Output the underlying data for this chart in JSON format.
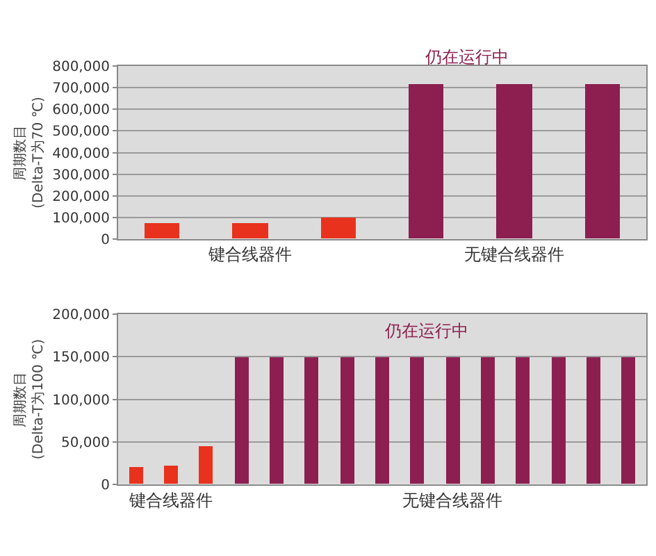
{
  "chart_data": [
    {
      "type": "bar",
      "ylabel": "周期数目\n(Delta-T为70 ℃)",
      "categories": [
        null,
        "键合线器件",
        null,
        null,
        "无键合线器件",
        null
      ],
      "values": [
        70000,
        75000,
        100000,
        715000,
        715000,
        715000
      ],
      "colors": [
        "#e8321e",
        "#e8321e",
        "#e8321e",
        "#8c1f50",
        "#8c1f50",
        "#8c1f50"
      ],
      "ylim": [
        0,
        800000
      ],
      "yticks": [
        {
          "value": 0,
          "label": "0"
        },
        {
          "value": 100000,
          "label": "100,000"
        },
        {
          "value": 200000,
          "label": "200,000"
        },
        {
          "value": 300000,
          "label": "300,000"
        },
        {
          "value": 400000,
          "label": "400,000"
        },
        {
          "value": 500000,
          "label": "500,000"
        },
        {
          "value": 600000,
          "label": "600,000"
        },
        {
          "value": 700000,
          "label": "700,000"
        },
        {
          "value": 800000,
          "label": "800,000"
        }
      ],
      "grid": "y",
      "annotations": [
        "仍在运行中"
      ]
    },
    {
      "type": "bar",
      "ylabel": "周期数目\n(Delta-T为100 ℃)",
      "categories": [
        null,
        "键合线器件",
        null,
        null,
        null,
        null,
        null,
        null,
        null,
        "无键合线器件",
        null,
        null,
        null,
        null,
        null
      ],
      "values": [
        20000,
        22000,
        45000,
        150000,
        150000,
        150000,
        150000,
        150000,
        150000,
        150000,
        150000,
        150000,
        150000,
        150000,
        150000
      ],
      "colors": [
        "#e8321e",
        "#e8321e",
        "#e8321e",
        "#8c1f50",
        "#8c1f50",
        "#8c1f50",
        "#8c1f50",
        "#8c1f50",
        "#8c1f50",
        "#8c1f50",
        "#8c1f50",
        "#8c1f50",
        "#8c1f50",
        "#8c1f50",
        "#8c1f50"
      ],
      "ylim": [
        0,
        200000
      ],
      "yticks": [
        {
          "value": 0,
          "label": "0"
        },
        {
          "value": 50000,
          "label": "50,000"
        },
        {
          "value": 100000,
          "label": "100,000"
        },
        {
          "value": 150000,
          "label": "150,000"
        },
        {
          "value": 200000,
          "label": "200,000"
        }
      ],
      "grid": "y",
      "annotations": [
        "仍在运行中"
      ]
    }
  ]
}
